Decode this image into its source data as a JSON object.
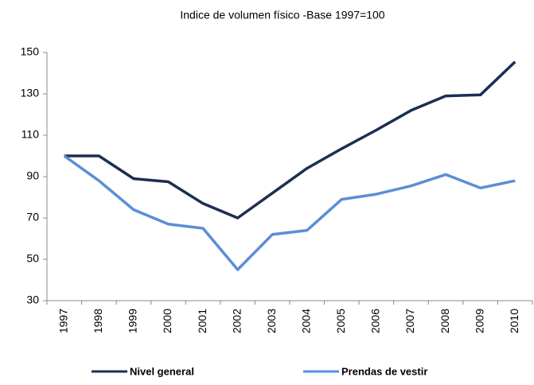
{
  "chart_data": {
    "type": "line",
    "title": "Indice de volumen físico -Base 1997=100",
    "categories": [
      "1997",
      "1998",
      "1999",
      "2000",
      "2001",
      "2002",
      "2003",
      "2004",
      "2005",
      "2006",
      "2007",
      "2008",
      "2009",
      "2010"
    ],
    "series": [
      {
        "name": "Nivel general",
        "color": "#1c2f52",
        "values": [
          100,
          100,
          89,
          87.5,
          77,
          70,
          82,
          94,
          103.5,
          112.5,
          122,
          129,
          129.5,
          145.5
        ]
      },
      {
        "name": "Prendas de vestir",
        "color": "#5b8ed6",
        "values": [
          100,
          88,
          74,
          67,
          65,
          45,
          62,
          64,
          79,
          81.5,
          85.5,
          91,
          84.5,
          88
        ]
      }
    ],
    "ylim": [
      30,
      150
    ],
    "yticks": [
      30,
      50,
      70,
      90,
      110,
      130,
      150
    ],
    "grid": false,
    "legend": "bottom"
  }
}
